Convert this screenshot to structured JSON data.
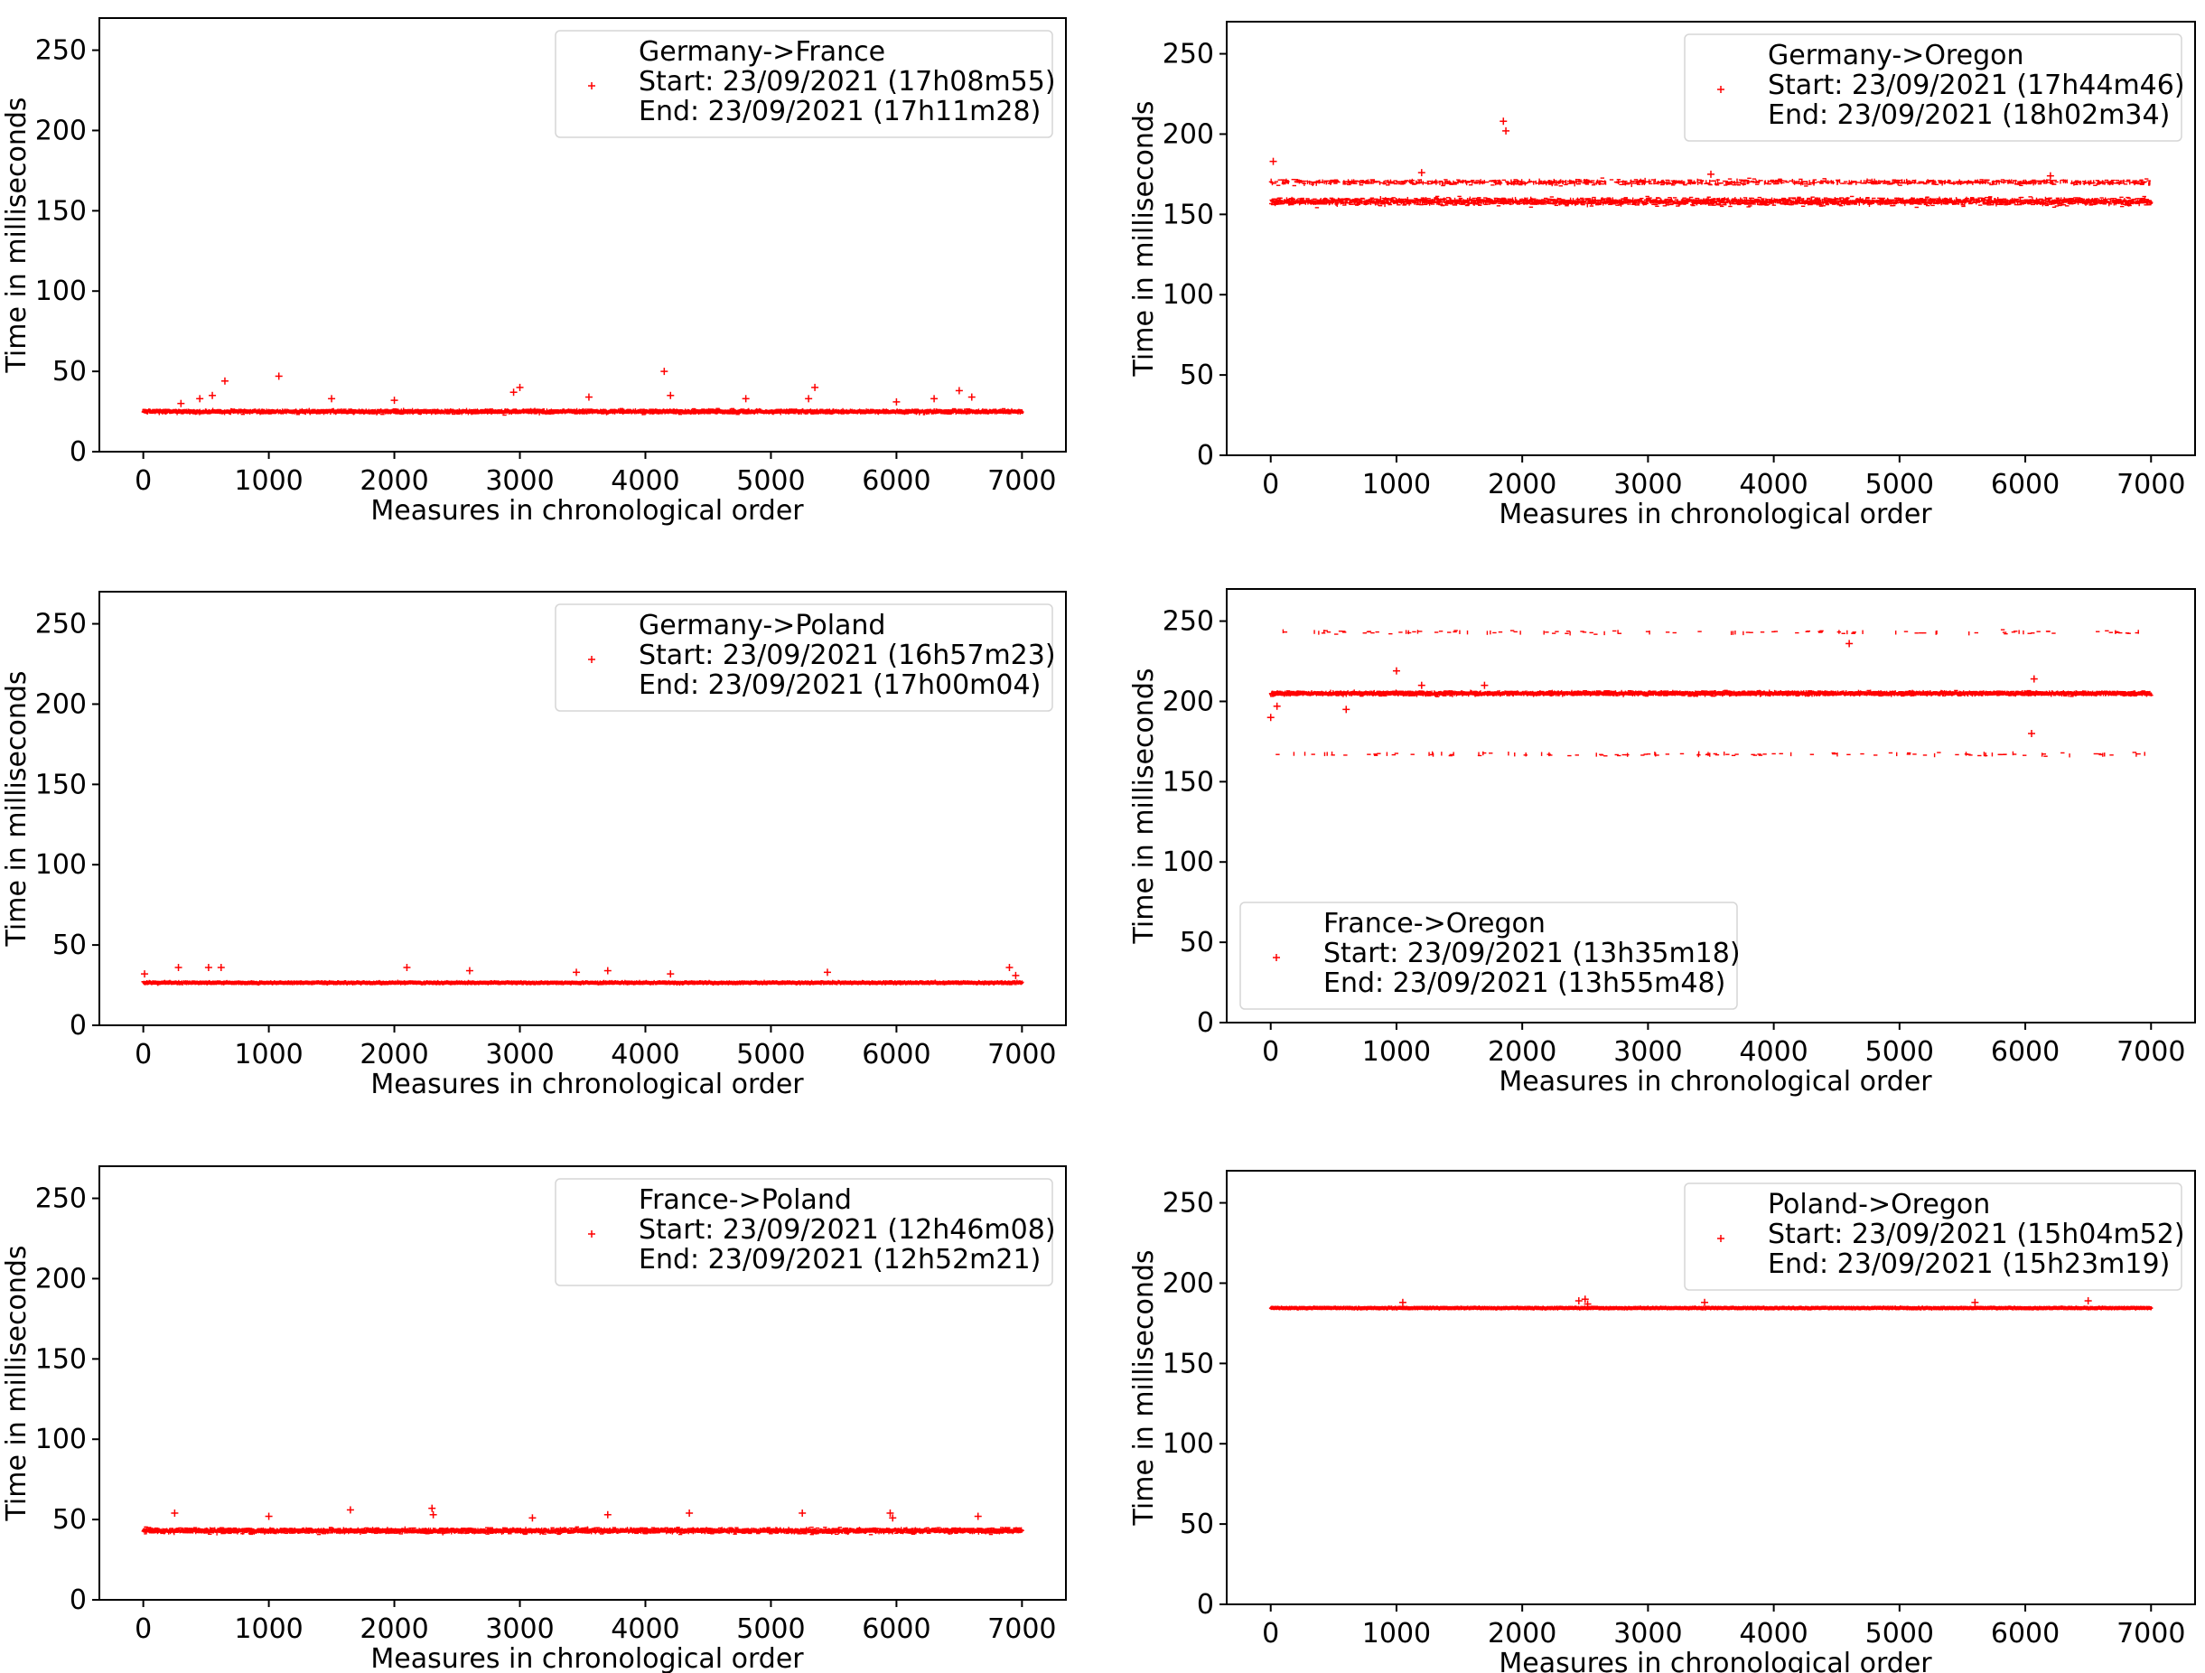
{
  "chart_data": [
    {
      "type": "scatter",
      "legend": {
        "title": "Germany->France",
        "start": "Start: 23/09/2021 (17h08m55)",
        "end": "End: 23/09/2021 (17h11m28)",
        "placement": "top-right"
      },
      "xlabel": "Measures in chronological order",
      "ylabel": "Time in milliseconds",
      "xlim": [
        -350,
        7350
      ],
      "ylim": [
        0,
        270
      ],
      "xticks": [
        0,
        1000,
        2000,
        3000,
        4000,
        5000,
        6000,
        7000
      ],
      "yticks": [
        0,
        50,
        100,
        150,
        200,
        250
      ],
      "series": [
        {
          "name": "Germany->France",
          "color": "#ff0000",
          "n": 7000,
          "bands": [
            {
              "center": 25,
              "spread": 1.6,
              "weight": 1.0
            }
          ],
          "outliers": [
            [
              300,
              30
            ],
            [
              450,
              33
            ],
            [
              550,
              35
            ],
            [
              650,
              44
            ],
            [
              1080,
              47
            ],
            [
              1500,
              33
            ],
            [
              2000,
              32
            ],
            [
              2950,
              37
            ],
            [
              3000,
              40
            ],
            [
              3550,
              34
            ],
            [
              4150,
              50
            ],
            [
              4200,
              35
            ],
            [
              4800,
              33
            ],
            [
              5300,
              33
            ],
            [
              5350,
              40
            ],
            [
              6000,
              31
            ],
            [
              6300,
              33
            ],
            [
              6500,
              38
            ],
            [
              6600,
              34
            ]
          ]
        }
      ]
    },
    {
      "type": "scatter",
      "legend": {
        "title": "Germany->Oregon",
        "start": "Start: 23/09/2021 (17h44m46)",
        "end": "End: 23/09/2021 (18h02m34)",
        "placement": "top-right"
      },
      "xlabel": "Measures in chronological order",
      "ylabel": "Time in milliseconds",
      "xlim": [
        -350,
        7350
      ],
      "ylim": [
        0,
        270
      ],
      "xticks": [
        0,
        1000,
        2000,
        3000,
        4000,
        5000,
        6000,
        7000
      ],
      "yticks": [
        0,
        50,
        100,
        150,
        200,
        250
      ],
      "series": [
        {
          "name": "Germany->Oregon",
          "color": "#ff0000",
          "n": 7000,
          "bands": [
            {
              "center": 158,
              "spread": 3.0,
              "weight": 0.72
            },
            {
              "center": 170,
              "spread": 2.2,
              "weight": 0.28
            }
          ],
          "outliers": [
            [
              20,
              183
            ],
            [
              1850,
              208
            ],
            [
              1870,
              202
            ],
            [
              1200,
              176
            ],
            [
              3500,
              175
            ],
            [
              6200,
              174
            ]
          ]
        }
      ]
    },
    {
      "type": "scatter",
      "legend": {
        "title": "Germany->Poland",
        "start": "Start: 23/09/2021 (16h57m23)",
        "end": "End: 23/09/2021 (17h00m04)",
        "placement": "top-right"
      },
      "xlabel": "Measures in chronological order",
      "ylabel": "Time in milliseconds",
      "xlim": [
        -350,
        7350
      ],
      "ylim": [
        0,
        270
      ],
      "xticks": [
        0,
        1000,
        2000,
        3000,
        4000,
        5000,
        6000,
        7000
      ],
      "yticks": [
        0,
        50,
        100,
        150,
        200,
        250
      ],
      "series": [
        {
          "name": "Germany->Poland",
          "color": "#ff0000",
          "n": 7000,
          "bands": [
            {
              "center": 26.5,
              "spread": 0.9,
              "weight": 1.0
            }
          ],
          "outliers": [
            [
              10,
              32
            ],
            [
              280,
              36
            ],
            [
              520,
              36
            ],
            [
              620,
              36
            ],
            [
              2100,
              36
            ],
            [
              2600,
              34
            ],
            [
              3450,
              33
            ],
            [
              3700,
              34
            ],
            [
              4200,
              32
            ],
            [
              5450,
              33
            ],
            [
              6900,
              36
            ],
            [
              6950,
              31
            ]
          ]
        }
      ]
    },
    {
      "type": "scatter",
      "legend": {
        "title": "France->Oregon",
        "start": "Start: 23/09/2021 (13h35m18)",
        "end": "End: 23/09/2021 (13h55m48)",
        "placement": "bottom-left"
      },
      "xlabel": "Measures in chronological order",
      "ylabel": "Time in milliseconds",
      "xlim": [
        -350,
        7350
      ],
      "ylim": [
        0,
        270
      ],
      "xticks": [
        0,
        1000,
        2000,
        3000,
        4000,
        5000,
        6000,
        7000
      ],
      "yticks": [
        0,
        50,
        100,
        150,
        200,
        250
      ],
      "series": [
        {
          "name": "France->Oregon",
          "color": "#ff0000",
          "n": 7000,
          "bands": [
            {
              "center": 205,
              "spread": 1.6,
              "weight": 0.93
            },
            {
              "center": 243,
              "spread": 1.4,
              "weight": 0.035
            },
            {
              "center": 167,
              "spread": 1.4,
              "weight": 0.035
            }
          ],
          "outliers": [
            [
              0,
              190
            ],
            [
              50,
              197
            ],
            [
              1000,
              219
            ],
            [
              1200,
              210
            ],
            [
              6050,
              180
            ],
            [
              6070,
              214
            ],
            [
              4600,
              236
            ],
            [
              1700,
              210
            ],
            [
              600,
              195
            ]
          ]
        }
      ]
    },
    {
      "type": "scatter",
      "legend": {
        "title": "France->Poland",
        "start": "Start: 23/09/2021 (12h46m08)",
        "end": "End: 23/09/2021 (12h52m21)",
        "placement": "top-right"
      },
      "xlabel": "Measures in chronological order",
      "ylabel": "Time in milliseconds",
      "xlim": [
        -350,
        7350
      ],
      "ylim": [
        0,
        270
      ],
      "xticks": [
        0,
        1000,
        2000,
        3000,
        4000,
        5000,
        6000,
        7000
      ],
      "yticks": [
        0,
        50,
        100,
        150,
        200,
        250
      ],
      "series": [
        {
          "name": "France->Poland",
          "color": "#ff0000",
          "n": 7000,
          "bands": [
            {
              "center": 43,
              "spread": 2.0,
              "weight": 1.0
            }
          ],
          "outliers": [
            [
              250,
              54
            ],
            [
              1000,
              52
            ],
            [
              1650,
              56
            ],
            [
              2300,
              57
            ],
            [
              2310,
              53
            ],
            [
              3700,
              53
            ],
            [
              4350,
              54
            ],
            [
              5250,
              54
            ],
            [
              5950,
              54
            ],
            [
              5970,
              51
            ],
            [
              6650,
              52
            ],
            [
              3100,
              51
            ]
          ]
        }
      ]
    },
    {
      "type": "scatter",
      "legend": {
        "title": "Poland->Oregon",
        "start": "Start: 23/09/2021 (15h04m52)",
        "end": "End: 23/09/2021 (15h23m19)",
        "placement": "top-right"
      },
      "xlabel": "Measures in chronological order",
      "ylabel": "Time in milliseconds",
      "xlim": [
        -350,
        7350
      ],
      "ylim": [
        0,
        270
      ],
      "xticks": [
        0,
        1000,
        2000,
        3000,
        4000,
        5000,
        6000,
        7000
      ],
      "yticks": [
        0,
        50,
        100,
        150,
        200,
        250
      ],
      "series": [
        {
          "name": "Poland->Oregon",
          "color": "#ff0000",
          "n": 7000,
          "bands": [
            {
              "center": 184.5,
              "spread": 0.6,
              "weight": 1.0
            }
          ],
          "outliers": [
            [
              1050,
              188
            ],
            [
              2450,
              189
            ],
            [
              2500,
              190
            ],
            [
              2520,
              187
            ],
            [
              3450,
              188
            ],
            [
              5600,
              188
            ],
            [
              6500,
              189
            ]
          ]
        }
      ]
    }
  ]
}
